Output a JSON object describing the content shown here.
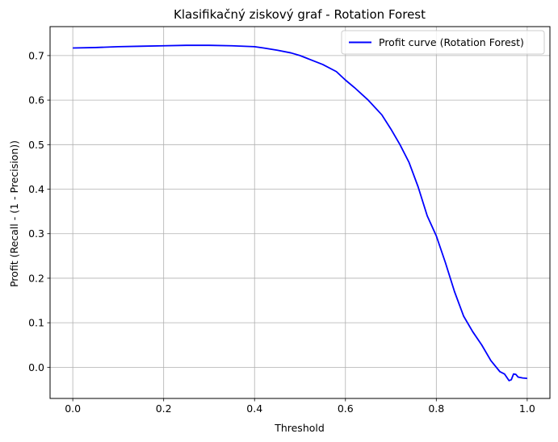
{
  "chart_data": {
    "type": "line",
    "title": "Klasifikačný ziskový graf - Rotation Forest",
    "xlabel": "Threshold",
    "ylabel": "Profit (Recall - (1 - Precision))",
    "xlim": [
      -0.05,
      1.05
    ],
    "ylim": [
      -0.07,
      0.765
    ],
    "xticks": [
      0.0,
      0.2,
      0.4,
      0.6,
      0.8,
      1.0
    ],
    "xtick_labels": [
      "0.0",
      "0.2",
      "0.4",
      "0.6",
      "0.8",
      "1.0"
    ],
    "yticks": [
      0.0,
      0.1,
      0.2,
      0.3,
      0.4,
      0.5,
      0.6,
      0.7
    ],
    "ytick_labels": [
      "0.0",
      "0.1",
      "0.2",
      "0.3",
      "0.4",
      "0.5",
      "0.6",
      "0.7"
    ],
    "grid": true,
    "legend_position": "top-right",
    "series": [
      {
        "name": "Profit curve (Rotation Forest)",
        "color": "#0000ff",
        "x": [
          0.0,
          0.05,
          0.1,
          0.15,
          0.2,
          0.25,
          0.3,
          0.35,
          0.4,
          0.42,
          0.45,
          0.48,
          0.5,
          0.52,
          0.55,
          0.58,
          0.6,
          0.62,
          0.65,
          0.68,
          0.7,
          0.72,
          0.74,
          0.76,
          0.78,
          0.8,
          0.82,
          0.84,
          0.86,
          0.88,
          0.9,
          0.92,
          0.94,
          0.95,
          0.96,
          0.965,
          0.97,
          0.975,
          0.98,
          0.99,
          1.0
        ],
        "y": [
          0.717,
          0.718,
          0.72,
          0.721,
          0.722,
          0.723,
          0.723,
          0.722,
          0.72,
          0.717,
          0.712,
          0.706,
          0.7,
          0.692,
          0.68,
          0.664,
          0.645,
          0.628,
          0.6,
          0.567,
          0.535,
          0.5,
          0.46,
          0.405,
          0.34,
          0.295,
          0.235,
          0.17,
          0.115,
          0.08,
          0.05,
          0.015,
          -0.01,
          -0.015,
          -0.03,
          -0.028,
          -0.015,
          -0.016,
          -0.022,
          -0.024,
          -0.025
        ]
      }
    ]
  }
}
